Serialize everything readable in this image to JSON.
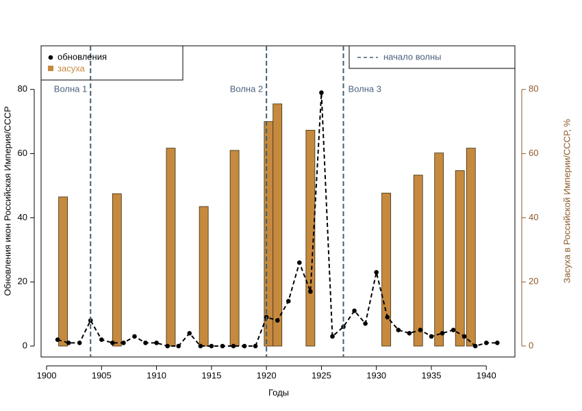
{
  "chart_data": {
    "type": "combo",
    "xlabel": "Годы",
    "ylabel": "Обновления икон Российская Империя/СССР",
    "y2label": "Засуха в Российской Империи/СССР, %",
    "xlim": [
      1899.5,
      1942.6
    ],
    "ylim": [
      -3.4,
      93.6
    ],
    "y2lim": [
      -3.4,
      93.6
    ],
    "xticks": [
      1900,
      1905,
      1910,
      1915,
      1920,
      1925,
      1930,
      1935,
      1940
    ],
    "yticks": [
      0,
      20,
      40,
      60,
      80
    ],
    "y2ticks": [
      0,
      20,
      40,
      60,
      80
    ],
    "series": [
      {
        "name": "засуха",
        "type": "bar",
        "axis": "y2",
        "color": "#c68a3e",
        "x": [
          1901.5,
          1906.4,
          1911.3,
          1914.3,
          1917.1,
          1920.2,
          1921.0,
          1924.0,
          1930.9,
          1933.8,
          1935.7,
          1937.6,
          1938.6
        ],
        "values": [
          46.5,
          47.5,
          61.7,
          43.5,
          61,
          70,
          75.5,
          67.3,
          47.7,
          53.3,
          60.2,
          54.7,
          61.7
        ]
      },
      {
        "name": "обновления",
        "type": "line",
        "color": "#000000",
        "x": [
          1901,
          1902,
          1903,
          1904,
          1905,
          1906,
          1907,
          1908,
          1909,
          1910,
          1911,
          1912,
          1913,
          1914,
          1915,
          1916,
          1917,
          1918,
          1919,
          1920,
          1921,
          1922,
          1923,
          1924,
          1925,
          1926,
          1927,
          1928,
          1929,
          1930,
          1931,
          1932,
          1933,
          1934,
          1935,
          1936,
          1937,
          1938,
          1939,
          1940,
          1941
        ],
        "values": [
          2,
          1,
          1,
          8,
          2,
          1,
          1,
          3,
          1,
          1,
          0,
          0,
          4,
          0,
          0,
          0,
          0,
          0,
          0,
          9,
          8,
          14,
          26,
          17,
          79,
          3,
          6,
          11,
          7,
          23,
          9,
          5,
          4,
          5,
          3,
          4,
          5,
          3,
          0,
          1,
          1
        ]
      }
    ],
    "wave_starts": {
      "name": "начало волны",
      "color": "#3f5f70",
      "x": [
        1904,
        1920,
        1927
      ],
      "labels": [
        "Волна 1",
        "Волна 2",
        "Волна 3"
      ]
    }
  }
}
